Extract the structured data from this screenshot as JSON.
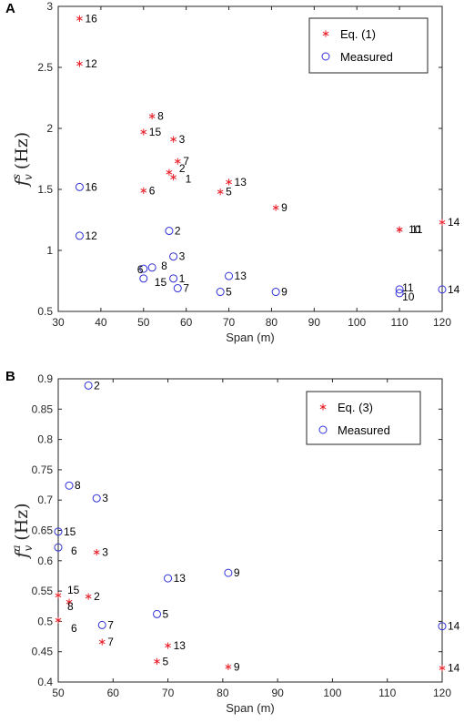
{
  "colors": {
    "eq": "#e8202a",
    "measured": "#3030d8",
    "axis": "#262626"
  },
  "chart_data": [
    {
      "panel": "A",
      "type": "scatter",
      "xlabel": "Span (m)",
      "ylabel_symbol": "f",
      "ylabel_sub": "v",
      "ylabel_sup": "s",
      "ylabel_unit": "(Hz)",
      "xlim": [
        30,
        120
      ],
      "ylim": [
        0.5,
        3
      ],
      "xticks": [
        30,
        40,
        50,
        60,
        70,
        80,
        90,
        100,
        110,
        120
      ],
      "yticks": [
        0.5,
        1,
        1.5,
        2,
        2.5,
        3
      ],
      "legend": "top-right",
      "series": [
        {
          "name": "Eq. (1)",
          "marker": "asterisk",
          "points": [
            {
              "label": "16",
              "x": 35,
              "y": 2.9
            },
            {
              "label": "12",
              "x": 35,
              "y": 2.53
            },
            {
              "label": "8",
              "x": 52,
              "y": 2.1
            },
            {
              "label": "15",
              "x": 50,
              "y": 1.97
            },
            {
              "label": "3",
              "x": 57,
              "y": 1.91
            },
            {
              "label": "7",
              "x": 58,
              "y": 1.73
            },
            {
              "label": "2",
              "x": 56,
              "y": 1.64
            },
            {
              "label": "1",
              "x": 57,
              "y": 1.6
            },
            {
              "label": "13",
              "x": 70,
              "y": 1.56
            },
            {
              "label": "6",
              "x": 50,
              "y": 1.49
            },
            {
              "label": "5",
              "x": 68,
              "y": 1.48
            },
            {
              "label": "9",
              "x": 81,
              "y": 1.35
            },
            {
              "label": "10",
              "x": 110,
              "y": 1.17
            },
            {
              "label": "11",
              "x": 110,
              "y": 1.17
            },
            {
              "label": "14",
              "x": 120,
              "y": 1.23
            }
          ]
        },
        {
          "name": "Measured",
          "marker": "circle",
          "points": [
            {
              "label": "16",
              "x": 35,
              "y": 1.52
            },
            {
              "label": "2",
              "x": 56,
              "y": 1.16
            },
            {
              "label": "12",
              "x": 35,
              "y": 1.12
            },
            {
              "label": "3",
              "x": 57,
              "y": 0.95
            },
            {
              "label": "6",
              "x": 50,
              "y": 0.85
            },
            {
              "label": "8",
              "x": 52,
              "y": 0.86
            },
            {
              "label": "13",
              "x": 70,
              "y": 0.79
            },
            {
              "label": "15",
              "x": 50,
              "y": 0.77
            },
            {
              "label": "1",
              "x": 57,
              "y": 0.77
            },
            {
              "label": "7",
              "x": 58,
              "y": 0.69
            },
            {
              "label": "5",
              "x": 68,
              "y": 0.66
            },
            {
              "label": "9",
              "x": 81,
              "y": 0.66
            },
            {
              "label": "11",
              "x": 110,
              "y": 0.68
            },
            {
              "label": "10",
              "x": 110,
              "y": 0.65
            },
            {
              "label": "14",
              "x": 120,
              "y": 0.68
            }
          ]
        }
      ]
    },
    {
      "panel": "B",
      "type": "scatter",
      "xlabel": "Span (m)",
      "ylabel_symbol": "f",
      "ylabel_sub": "v",
      "ylabel_sup": "a",
      "ylabel_unit": "(Hz)",
      "xlim": [
        50,
        120
      ],
      "ylim": [
        0.4,
        0.9
      ],
      "xticks": [
        50,
        60,
        70,
        80,
        90,
        100,
        110,
        120
      ],
      "yticks": [
        0.4,
        0.45,
        0.5,
        0.55,
        0.6,
        0.65,
        0.7,
        0.75,
        0.8,
        0.85,
        0.9
      ],
      "legend": "top-right",
      "series": [
        {
          "name": "Eq. (3)",
          "marker": "asterisk",
          "points": [
            {
              "label": "3",
              "x": 57,
              "y": 0.614
            },
            {
              "label": "15",
              "x": 50,
              "y": 0.543
            },
            {
              "label": "2",
              "x": 55.5,
              "y": 0.541
            },
            {
              "label": "8",
              "x": 52,
              "y": 0.532
            },
            {
              "label": "6",
              "x": 50,
              "y": 0.502
            },
            {
              "label": "7",
              "x": 58,
              "y": 0.466
            },
            {
              "label": "13",
              "x": 70,
              "y": 0.46
            },
            {
              "label": "5",
              "x": 68,
              "y": 0.434
            },
            {
              "label": "9",
              "x": 81,
              "y": 0.425
            },
            {
              "label": "14",
              "x": 120,
              "y": 0.423
            }
          ]
        },
        {
          "name": "Measured",
          "marker": "circle",
          "points": [
            {
              "label": "2",
              "x": 55.5,
              "y": 0.889
            },
            {
              "label": "8",
              "x": 52,
              "y": 0.724
            },
            {
              "label": "3",
              "x": 57,
              "y": 0.703
            },
            {
              "label": "15",
              "x": 50,
              "y": 0.648
            },
            {
              "label": "6",
              "x": 50,
              "y": 0.622
            },
            {
              "label": "9",
              "x": 81,
              "y": 0.58
            },
            {
              "label": "13",
              "x": 70,
              "y": 0.571
            },
            {
              "label": "5",
              "x": 68,
              "y": 0.512
            },
            {
              "label": "7",
              "x": 58,
              "y": 0.494
            },
            {
              "label": "14",
              "x": 120,
              "y": 0.492
            }
          ]
        }
      ]
    }
  ]
}
